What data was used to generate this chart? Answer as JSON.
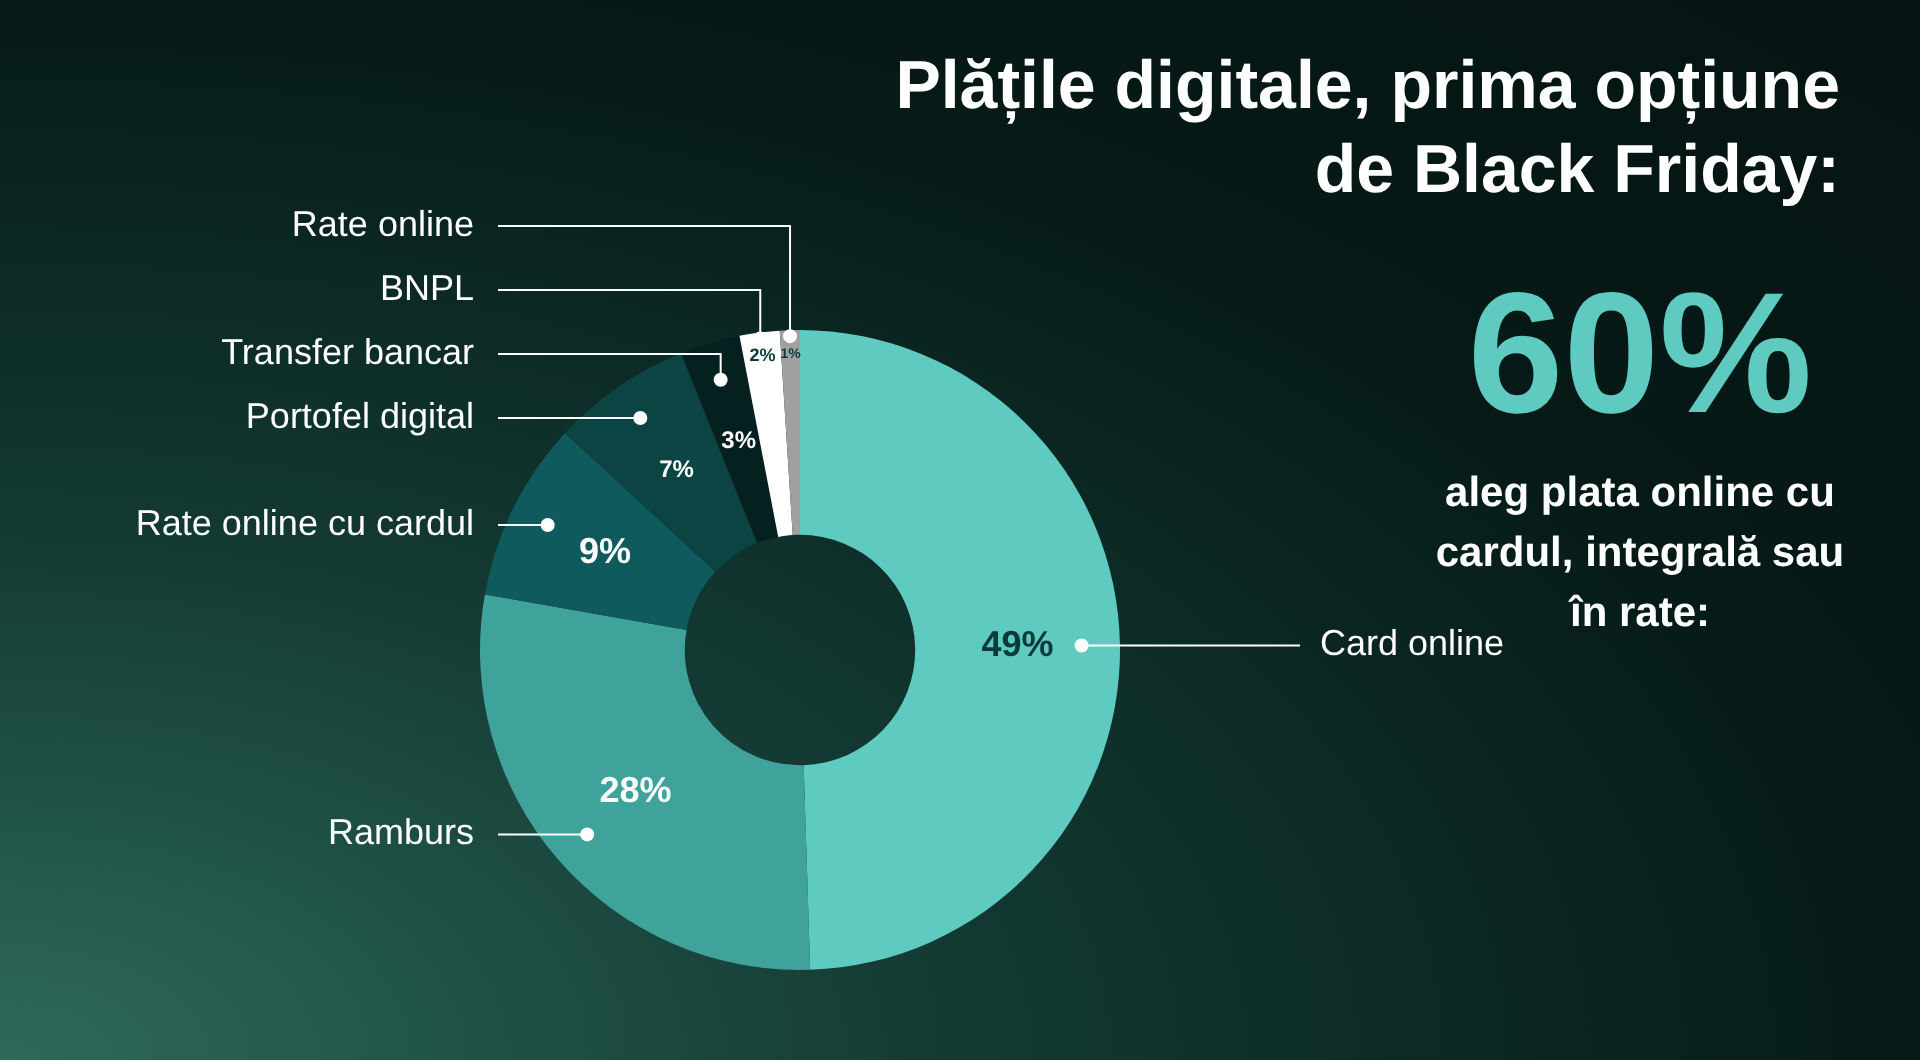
{
  "chart_data": {
    "type": "donut",
    "title": "Plățile digitale, prima opțiune de Black Friday:",
    "categories": [
      "Card online",
      "Ramburs",
      "Rate online cu cardul",
      "Portofel digital",
      "Transfer bancar",
      "BNPL",
      "Rate online"
    ],
    "values": [
      49,
      28,
      9,
      7,
      3,
      2,
      1
    ],
    "value_labels": [
      "49%",
      "28%",
      "9%",
      "7%",
      "3%",
      "2%",
      "1%"
    ],
    "colors": [
      "#5fcac0",
      "#3fa39b",
      "#0e5a5c",
      "#0b4443",
      "#04201f",
      "#ffffff",
      "#a0a0a0"
    ],
    "legend": false,
    "annotations": [
      "60%",
      "aleg plata online cu cardul, integrală sau în rate:"
    ]
  }
}
